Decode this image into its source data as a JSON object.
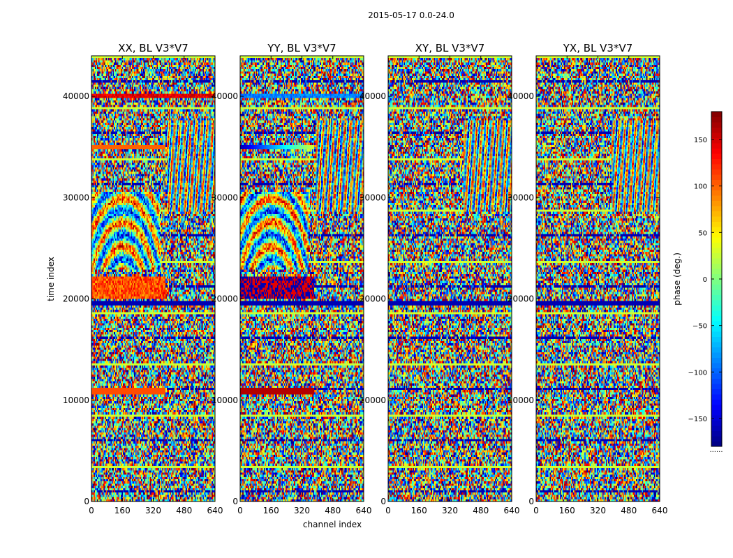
{
  "chart_data": {
    "type": "heatmap",
    "suptitle": "2015-05-17 0.0-24.0",
    "xlabel": "channel index",
    "ylabel": "time index",
    "xlim": [
      0,
      640
    ],
    "ylim": [
      0,
      44000
    ],
    "xticks": [
      0,
      160,
      320,
      480,
      640
    ],
    "yticks": [
      0,
      10000,
      20000,
      30000,
      40000
    ],
    "panels": [
      {
        "title": "XX, BL V3*V7",
        "pol": "XX"
      },
      {
        "title": "YY, BL V3*V7",
        "pol": "YY"
      },
      {
        "title": "XY, BL V3*V7",
        "pol": "XY"
      },
      {
        "title": "YX, BL V3*V7",
        "pol": "YX"
      }
    ],
    "colorbar": {
      "label": "phase (deg.)",
      "range": [
        -180,
        180
      ],
      "ticks": [
        -150,
        -100,
        -50,
        0,
        50,
        100,
        150
      ],
      "tick_labels": [
        "−150",
        "−100",
        "−50",
        "0",
        "50",
        "100",
        "150"
      ],
      "colormap": "jet",
      "extra_label": "......"
    }
  }
}
